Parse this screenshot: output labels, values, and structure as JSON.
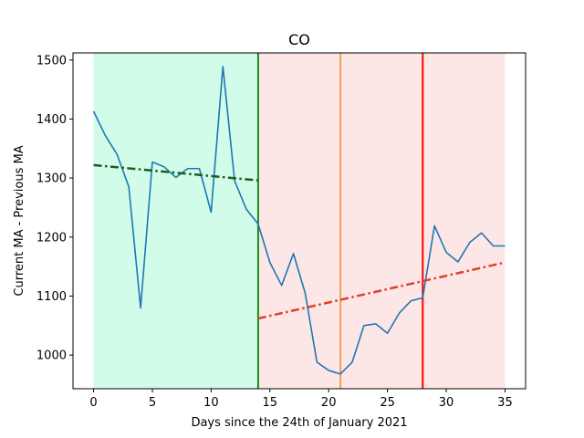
{
  "chart_data": {
    "type": "line",
    "title": "CO",
    "xlabel": "Days since the 24th of January 2021",
    "ylabel": "Current MA - Previous MA",
    "xlim": [
      -1.75,
      36.75
    ],
    "ylim": [
      943,
      1512
    ],
    "xticks": [
      0,
      5,
      10,
      15,
      20,
      25,
      30,
      35
    ],
    "yticks": [
      1000,
      1100,
      1200,
      1300,
      1400,
      1500
    ],
    "grid": false,
    "series": [
      {
        "color": "#1f77b4",
        "x": [
          0,
          1,
          2,
          3,
          4,
          5,
          6,
          7,
          8,
          9,
          10,
          11,
          12,
          13,
          14,
          15,
          16,
          17,
          18,
          19,
          20,
          21,
          22,
          23,
          24,
          25,
          26,
          27,
          28,
          29,
          30,
          31,
          32,
          33,
          34,
          35
        ],
        "y": [
          1413,
          1372,
          1340,
          1285,
          1080,
          1327,
          1319,
          1301,
          1316,
          1316,
          1242,
          1489,
          1295,
          1247,
          1222,
          1157,
          1118,
          1172,
          1105,
          988,
          974,
          968,
          988,
          1050,
          1053,
          1037,
          1071,
          1092,
          1097,
          1219,
          1174,
          1158,
          1191,
          1207,
          1185,
          1185
        ]
      }
    ],
    "trend_lines": [
      {
        "color": "#1a5e20",
        "x": [
          0,
          14
        ],
        "y": [
          1322,
          1296
        ]
      },
      {
        "color": "#e0402a",
        "x": [
          14,
          35
        ],
        "y": [
          1062,
          1157
        ]
      }
    ],
    "shaded_regions": [
      {
        "x": [
          0,
          14
        ],
        "color": "#d0fce9"
      },
      {
        "x": [
          14,
          35
        ],
        "color": "#fde6e6"
      }
    ],
    "vertical_lines": [
      {
        "x": 14,
        "color": "#1a8a1a"
      },
      {
        "x": 21,
        "color": "#f0a050"
      },
      {
        "x": 28,
        "color": "#ff0000"
      }
    ]
  }
}
